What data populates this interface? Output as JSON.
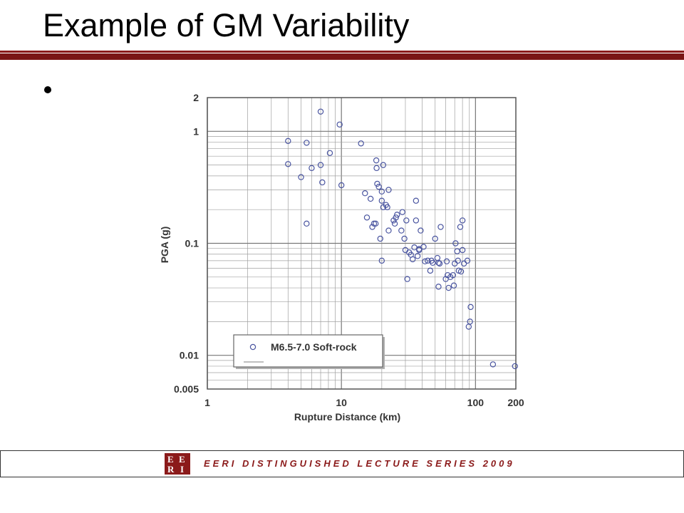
{
  "slide": {
    "title": "Example of GM Variability",
    "footer": "EERI DISTINGUISHED LECTURE SERIES 2009",
    "logo": [
      "E",
      "E",
      "R",
      "I"
    ]
  },
  "colors": {
    "accent": "#8b1a1a",
    "marker": "#4a55a0",
    "grid": "#a0a0a0"
  },
  "chart_data": {
    "type": "scatter",
    "xscale": "log",
    "yscale": "log",
    "xlim": [
      1,
      200
    ],
    "ylim": [
      0.005,
      2
    ],
    "xlabel": "Rupture Distance (km)",
    "ylabel": "PGA (g)",
    "xticks": [
      1,
      10,
      100,
      200
    ],
    "yticks": [
      0.005,
      0.01,
      0.1,
      1,
      2
    ],
    "xtick_labels": [
      "1",
      "10",
      "100",
      "200"
    ],
    "ytick_labels": [
      "0.005",
      "0.01",
      "0.1",
      "1",
      "2"
    ],
    "grid": true,
    "legend_position": "bottom-left",
    "series": [
      {
        "name": "M6.5-7.0 Soft-rock",
        "marker": "open-circle",
        "points": [
          [
            4.0,
            0.82
          ],
          [
            4.0,
            0.51
          ],
          [
            5.0,
            0.39
          ],
          [
            5.5,
            0.79
          ],
          [
            5.5,
            0.15
          ],
          [
            6.0,
            0.47
          ],
          [
            7.0,
            1.5
          ],
          [
            7.0,
            0.5
          ],
          [
            7.2,
            0.35
          ],
          [
            8.2,
            0.64
          ],
          [
            9.7,
            1.15
          ],
          [
            10.0,
            0.33
          ],
          [
            14.0,
            0.78
          ],
          [
            15.0,
            0.28
          ],
          [
            15.5,
            0.17
          ],
          [
            16.5,
            0.25
          ],
          [
            17.0,
            0.14
          ],
          [
            17.5,
            0.15
          ],
          [
            18.0,
            0.15
          ],
          [
            18.2,
            0.55
          ],
          [
            18.3,
            0.47
          ],
          [
            18.5,
            0.34
          ],
          [
            19.0,
            0.32
          ],
          [
            19.5,
            0.11
          ],
          [
            20.0,
            0.07
          ],
          [
            20.0,
            0.24
          ],
          [
            20.0,
            0.29
          ],
          [
            20.5,
            0.21
          ],
          [
            20.5,
            0.5
          ],
          [
            21.5,
            0.22
          ],
          [
            22.0,
            0.21
          ],
          [
            22.5,
            0.13
          ],
          [
            22.5,
            0.3
          ],
          [
            24.5,
            0.16
          ],
          [
            25.0,
            0.15
          ],
          [
            25.5,
            0.17
          ],
          [
            26.0,
            0.18
          ],
          [
            28.0,
            0.13
          ],
          [
            28.5,
            0.19
          ],
          [
            29.5,
            0.11
          ],
          [
            30.0,
            0.087
          ],
          [
            30.5,
            0.16
          ],
          [
            31.0,
            0.048
          ],
          [
            32.0,
            0.083
          ],
          [
            33.0,
            0.079
          ],
          [
            34.0,
            0.072
          ],
          [
            35.0,
            0.092
          ],
          [
            36.0,
            0.24
          ],
          [
            36.0,
            0.16
          ],
          [
            37.0,
            0.077
          ],
          [
            38.0,
            0.087
          ],
          [
            38.0,
            0.089
          ],
          [
            39.0,
            0.13
          ],
          [
            41.0,
            0.093
          ],
          [
            42.0,
            0.069
          ],
          [
            44.0,
            0.07
          ],
          [
            46.0,
            0.057
          ],
          [
            47.0,
            0.07
          ],
          [
            48.0,
            0.067
          ],
          [
            50.0,
            0.11
          ],
          [
            52.0,
            0.074
          ],
          [
            53.0,
            0.067
          ],
          [
            53.0,
            0.041
          ],
          [
            54.0,
            0.066
          ],
          [
            55.0,
            0.14
          ],
          [
            60.0,
            0.048
          ],
          [
            61.0,
            0.069
          ],
          [
            62.0,
            0.052
          ],
          [
            63.0,
            0.04
          ],
          [
            65.0,
            0.05
          ],
          [
            68.0,
            0.052
          ],
          [
            69.0,
            0.042
          ],
          [
            70.0,
            0.066
          ],
          [
            71.0,
            0.1
          ],
          [
            73.0,
            0.085
          ],
          [
            74.0,
            0.07
          ],
          [
            75.0,
            0.057
          ],
          [
            77.0,
            0.14
          ],
          [
            78.0,
            0.056
          ],
          [
            80.0,
            0.16
          ],
          [
            80.0,
            0.087
          ],
          [
            82.0,
            0.066
          ],
          [
            87.0,
            0.07
          ],
          [
            89.0,
            0.018
          ],
          [
            91.0,
            0.02
          ],
          [
            92.0,
            0.027
          ],
          [
            135.0,
            0.0083
          ],
          [
            197.0,
            0.008
          ]
        ]
      }
    ]
  }
}
